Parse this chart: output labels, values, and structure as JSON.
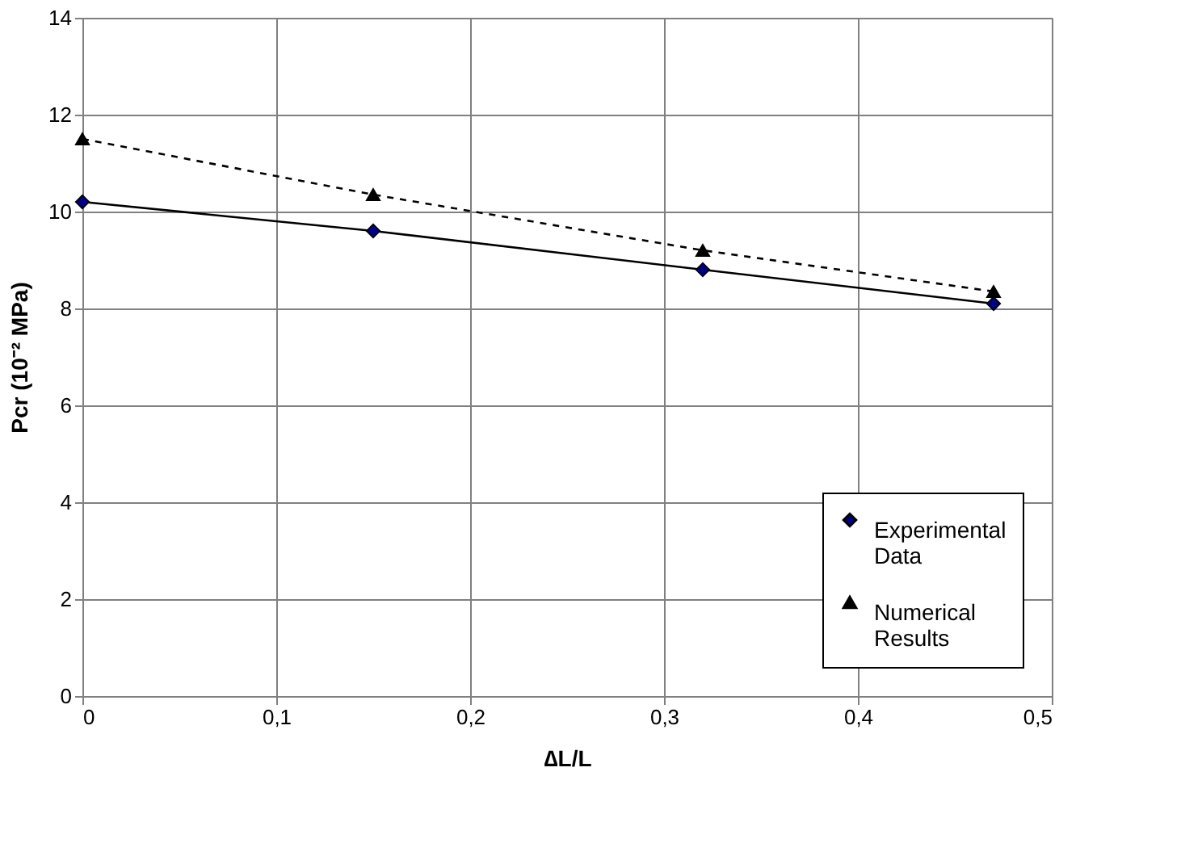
{
  "chart_data": {
    "type": "line",
    "xlabel": "∆L/L",
    "ylabel": "Pcr (10⁻² MPa)",
    "x": [
      0,
      0.15,
      0.32,
      0.47
    ],
    "series": [
      {
        "name": "Experimental Data",
        "color": "#000080",
        "values": [
          10.2,
          9.6,
          8.8,
          8.1
        ],
        "marker": "diamond",
        "line_style": "solid"
      },
      {
        "name": "Numerical Results",
        "color": "#000000",
        "values": [
          11.5,
          10.35,
          9.2,
          8.35
        ],
        "marker": "triangle",
        "line_style": "dashed"
      }
    ],
    "xlim": [
      0,
      0.5
    ],
    "xticks": [
      0,
      {
        "value": 0.1,
        "label": "0,1"
      },
      {
        "value": 0.2,
        "label": "0,2"
      },
      {
        "value": 0.3,
        "label": "0,3"
      },
      {
        "value": 0.4,
        "label": "0,4"
      },
      {
        "value": 0.5,
        "label": "0,5"
      }
    ],
    "ylim": [
      0,
      14
    ],
    "yticks": [
      0,
      2,
      4,
      6,
      8,
      10,
      12,
      14
    ],
    "grid": true,
    "legend": "bottom right"
  }
}
